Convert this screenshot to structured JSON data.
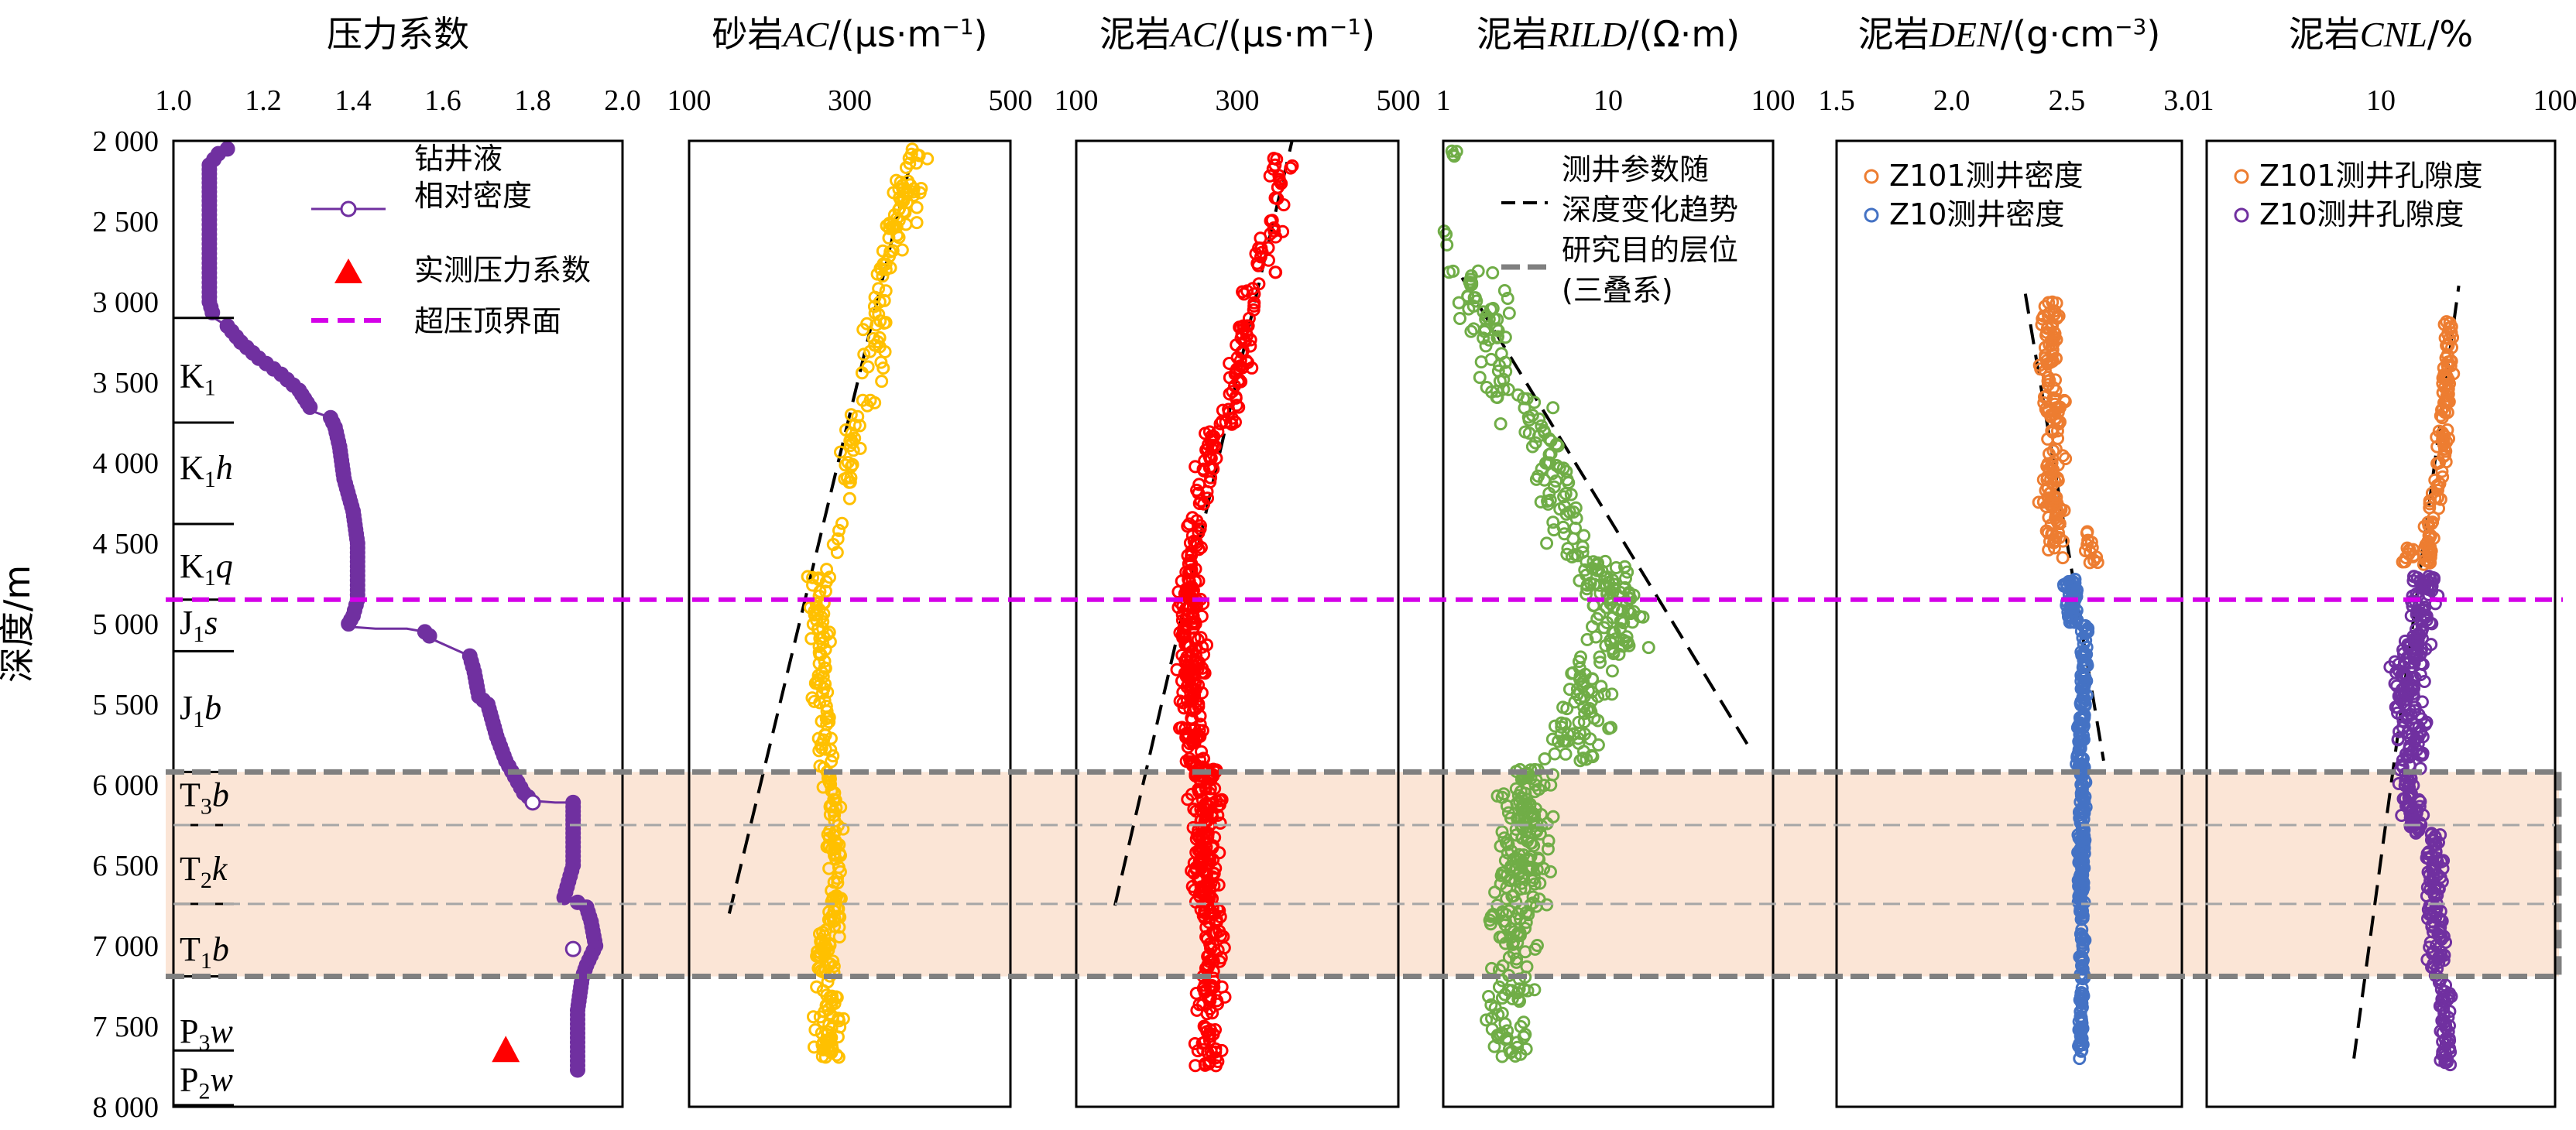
{
  "depth_axis": {
    "label": "深度/m",
    "ticks": [
      "2 000",
      "2 500",
      "3 000",
      "3 500",
      "4 000",
      "4 500",
      "5 000",
      "5 500",
      "6 000",
      "6 500",
      "7 000",
      "7 500",
      "8 000"
    ],
    "range": [
      2000,
      8000
    ]
  },
  "reference_lines": {
    "overpressure_top_depth": 4850,
    "target_interval": [
      5920,
      7190
    ],
    "sub_boundaries": [
      6250,
      6740
    ]
  },
  "chart_data": [
    {
      "id": "pressure",
      "type": "line",
      "title": "压力系数",
      "xscale": "linear",
      "xlim": [
        1.0,
        2.0
      ],
      "x_ticks": [
        "1.0",
        "1.2",
        "1.4",
        "1.6",
        "1.8",
        "2.0"
      ],
      "x_tick_values": [
        1.0,
        1.2,
        1.4,
        1.6,
        1.8,
        2.0
      ],
      "ylim": [
        2000,
        8000
      ],
      "series": [
        {
          "name": "钻井液相对密度",
          "color": "#7030a0",
          "points": [
            [
              1.12,
              2050
            ],
            [
              1.1,
              2080
            ],
            [
              1.08,
              2150
            ],
            [
              1.08,
              2400
            ],
            [
              1.08,
              2700
            ],
            [
              1.08,
              3000
            ],
            [
              1.09,
              3100
            ],
            [
              1.12,
              3150
            ],
            [
              1.15,
              3250
            ],
            [
              1.19,
              3350
            ],
            [
              1.24,
              3450
            ],
            [
              1.28,
              3550
            ],
            [
              1.31,
              3680
            ],
            [
              1.35,
              3720
            ],
            [
              1.36,
              3780
            ],
            [
              1.37,
              3900
            ],
            [
              1.38,
              4100
            ],
            [
              1.4,
              4300
            ],
            [
              1.41,
              4500
            ],
            [
              1.41,
              4700
            ],
            [
              1.41,
              4850
            ],
            [
              1.4,
              4950
            ],
            [
              1.39,
              5000
            ],
            [
              1.4,
              5020
            ],
            [
              1.45,
              5030
            ],
            [
              1.52,
              5030
            ],
            [
              1.56,
              5050
            ],
            [
              1.58,
              5100
            ],
            [
              1.62,
              5150
            ],
            [
              1.66,
              5200
            ],
            [
              1.67,
              5300
            ],
            [
              1.68,
              5450
            ],
            [
              1.7,
              5500
            ],
            [
              1.72,
              5700
            ],
            [
              1.74,
              5850
            ],
            [
              1.76,
              5950
            ],
            [
              1.78,
              6050
            ],
            [
              1.8,
              6100
            ],
            [
              1.85,
              6110
            ],
            [
              1.89,
              6110
            ],
            [
              1.89,
              6300
            ],
            [
              1.89,
              6500
            ],
            [
              1.88,
              6600
            ],
            [
              1.87,
              6700
            ],
            [
              1.9,
              6730
            ],
            [
              1.92,
              6760
            ],
            [
              1.93,
              6850
            ],
            [
              1.94,
              7000
            ],
            [
              1.92,
              7120
            ],
            [
              1.91,
              7200
            ],
            [
              1.9,
              7400
            ],
            [
              1.9,
              7600
            ],
            [
              1.9,
              7800
            ]
          ],
          "open_markers": [
            [
              1.8,
              6110
            ],
            [
              1.89,
              7020
            ]
          ]
        },
        {
          "name": "实测压力系数",
          "color": "#ff0000",
          "marker": "triangle",
          "points": [
            [
              1.74,
              7650
            ]
          ]
        }
      ],
      "hline_label": "超压顶界面",
      "strata": [
        {
          "depth": 3100,
          "base": "",
          "sub": "",
          "italic": ""
        },
        {
          "depth": 3460,
          "base": "K",
          "sub": "1",
          "italic": ""
        },
        {
          "depth": 3750,
          "base": "",
          "sub": "",
          "italic": ""
        },
        {
          "depth": 4030,
          "base": "K",
          "sub": "1",
          "italic": "h"
        },
        {
          "depth": 4380,
          "base": "",
          "sub": "",
          "italic": ""
        },
        {
          "depth": 4640,
          "base": "K",
          "sub": "1",
          "italic": "q"
        },
        {
          "depth": 4850,
          "base": "",
          "sub": "",
          "italic": ""
        },
        {
          "depth": 4990,
          "base": "J",
          "sub": "1",
          "italic": "s"
        },
        {
          "depth": 5170,
          "base": "",
          "sub": "",
          "italic": ""
        },
        {
          "depth": 5520,
          "base": "J",
          "sub": "1",
          "italic": "b"
        },
        {
          "depth": 5920,
          "base": "",
          "sub": "",
          "italic": ""
        },
        {
          "depth": 6060,
          "base": "T",
          "sub": "3",
          "italic": "b"
        },
        {
          "depth": 6250,
          "base": "",
          "sub": "",
          "italic": ""
        },
        {
          "depth": 6520,
          "base": "T",
          "sub": "2",
          "italic": "k"
        },
        {
          "depth": 6740,
          "base": "",
          "sub": "",
          "italic": ""
        },
        {
          "depth": 7020,
          "base": "T",
          "sub": "1",
          "italic": "b"
        },
        {
          "depth": 7190,
          "base": "",
          "sub": "",
          "italic": ""
        },
        {
          "depth": 7530,
          "base": "P",
          "sub": "3",
          "italic": "w"
        },
        {
          "depth": 7650,
          "base": "",
          "sub": "",
          "italic": ""
        },
        {
          "depth": 7830,
          "base": "P",
          "sub": "2",
          "italic": "w"
        },
        {
          "depth": 7990,
          "base": "",
          "sub": "",
          "italic": ""
        }
      ]
    },
    {
      "id": "sand-ac",
      "type": "scatter",
      "title_parts": [
        [
          "砂岩",
          ""
        ],
        [
          "AC",
          "i"
        ],
        [
          "/(μs·m",
          ""
        ],
        [
          "−1",
          "sup"
        ],
        [
          ")",
          ""
        ]
      ],
      "xscale": "linear",
      "xlim": [
        100,
        500
      ],
      "x_ticks": [
        "100",
        "300",
        "500"
      ],
      "x_tick_values": [
        100,
        300,
        500
      ],
      "ylim": [
        2000,
        8000
      ],
      "color": "#ffc000",
      "points_gen": {
        "seed": 11,
        "segments": [
          {
            "d0": 2050,
            "d1": 2700,
            "v0": 385,
            "v1": 350,
            "spread": 28,
            "n": 55
          },
          {
            "d0": 2700,
            "d1": 3700,
            "v0": 345,
            "v1": 325,
            "spread": 20,
            "n": 40
          },
          {
            "d0": 3700,
            "d1": 4700,
            "v0": 310,
            "v1": 275,
            "spread": 15,
            "n": 30
          },
          {
            "d0": 4700,
            "d1": 5900,
            "v0": 262,
            "v1": 270,
            "spread": 18,
            "n": 80
          },
          {
            "d0": 5900,
            "d1": 6900,
            "v0": 278,
            "v1": 282,
            "spread": 16,
            "n": 70
          },
          {
            "d0": 6900,
            "d1": 7700,
            "v0": 268,
            "v1": 275,
            "spread": 22,
            "n": 90
          }
        ]
      },
      "trend": [
        [
          150,
          6800
        ],
        [
          375,
          2150
        ]
      ]
    },
    {
      "id": "mud-ac",
      "type": "scatter",
      "title_parts": [
        [
          "泥岩",
          ""
        ],
        [
          "AC",
          "i"
        ],
        [
          "/(μs·m",
          ""
        ],
        [
          "−1",
          "sup"
        ],
        [
          ")",
          ""
        ]
      ],
      "xscale": "linear",
      "xlim": [
        100,
        500
      ],
      "x_ticks": [
        "100",
        "300",
        "500"
      ],
      "x_tick_values": [
        100,
        300,
        500
      ],
      "ylim": [
        2000,
        8000
      ],
      "color": "#ff0000",
      "points_gen": {
        "seed": 23,
        "segments": [
          {
            "d0": 2100,
            "d1": 2900,
            "v0": 355,
            "v1": 330,
            "spread": 25,
            "n": 35
          },
          {
            "d0": 2900,
            "d1": 3800,
            "v0": 320,
            "v1": 290,
            "spread": 20,
            "n": 60
          },
          {
            "d0": 3800,
            "d1": 4800,
            "v0": 268,
            "v1": 240,
            "spread": 16,
            "n": 70
          },
          {
            "d0": 4800,
            "d1": 5900,
            "v0": 240,
            "v1": 245,
            "spread": 22,
            "n": 160
          },
          {
            "d0": 5900,
            "d1": 6800,
            "v0": 262,
            "v1": 262,
            "spread": 25,
            "n": 160
          },
          {
            "d0": 6800,
            "d1": 7750,
            "v0": 270,
            "v1": 265,
            "spread": 22,
            "n": 90
          }
        ]
      },
      "trend": [
        [
          148,
          6750
        ],
        [
          368,
          2000
        ]
      ]
    },
    {
      "id": "mud-rild",
      "type": "scatter",
      "title_parts": [
        [
          "泥岩",
          ""
        ],
        [
          "RILD",
          "i"
        ],
        [
          "/(Ω·m)",
          ""
        ]
      ],
      "xscale": "log",
      "xlim": [
        1,
        100
      ],
      "x_ticks": [
        "1",
        "10",
        "100"
      ],
      "x_tick_values": [
        1,
        10,
        100
      ],
      "ylim": [
        2000,
        8000
      ],
      "color": "#70ad47",
      "points_gen": {
        "seed": 37,
        "log": true,
        "segments": [
          {
            "d0": 2050,
            "d1": 2120,
            "v0": 1.1,
            "v1": 1.15,
            "spread": 0.05,
            "n": 4
          },
          {
            "d0": 2550,
            "d1": 2650,
            "v0": 1.02,
            "v1": 1.05,
            "spread": 0.03,
            "n": 3
          },
          {
            "d0": 2800,
            "d1": 3600,
            "v0": 1.5,
            "v1": 2.3,
            "spread": 0.22,
            "n": 60
          },
          {
            "d0": 3600,
            "d1": 4600,
            "v0": 3.0,
            "v1": 6.0,
            "spread": 0.22,
            "n": 70
          },
          {
            "d0": 4600,
            "d1": 5200,
            "v0": 9.0,
            "v1": 12.0,
            "spread": 0.25,
            "n": 90
          },
          {
            "d0": 5200,
            "d1": 5850,
            "v0": 8.0,
            "v1": 6.0,
            "spread": 0.25,
            "n": 70
          },
          {
            "d0": 5900,
            "d1": 6800,
            "v0": 3.2,
            "v1": 3.0,
            "spread": 0.22,
            "n": 150
          },
          {
            "d0": 6800,
            "d1": 7300,
            "v0": 2.6,
            "v1": 2.8,
            "spread": 0.22,
            "n": 50
          },
          {
            "d0": 7300,
            "d1": 7750,
            "v0": 2.2,
            "v1": 2.6,
            "spread": 0.2,
            "n": 35
          }
        ]
      },
      "trend": [
        [
          1.3,
          2850
        ],
        [
          70,
          5750
        ]
      ],
      "legend": [
        "测井参数随",
        "深度变化趋势",
        "研究目的层位",
        "(三叠系)"
      ]
    },
    {
      "id": "mud-den",
      "type": "scatter",
      "title_parts": [
        [
          "泥岩",
          ""
        ],
        [
          "DEN",
          "i"
        ],
        [
          "/(g·cm",
          ""
        ],
        [
          "−3",
          "sup"
        ],
        [
          ")",
          ""
        ]
      ],
      "xscale": "linear",
      "xlim": [
        1.5,
        3.0
      ],
      "x_ticks": [
        "1.5",
        "2.0",
        "2.5",
        "3.0"
      ],
      "x_tick_values": [
        1.5,
        2.0,
        2.5,
        3.0
      ],
      "ylim": [
        2000,
        8000
      ],
      "series": [
        {
          "name": "Z101测井密度",
          "color": "#ed7d31",
          "points_gen": {
            "seed": 51,
            "segments": [
              {
                "d0": 3000,
                "d1": 3600,
                "v0": 2.44,
                "v1": 2.42,
                "spread": 0.06,
                "n": 55
              },
              {
                "d0": 3600,
                "d1": 4000,
                "v0": 2.44,
                "v1": 2.46,
                "spread": 0.06,
                "n": 35
              },
              {
                "d0": 4000,
                "d1": 4600,
                "v0": 2.42,
                "v1": 2.46,
                "spread": 0.07,
                "n": 60
              },
              {
                "d0": 4400,
                "d1": 4650,
                "v0": 2.58,
                "v1": 2.62,
                "spread": 0.03,
                "n": 12
              }
            ]
          }
        },
        {
          "name": "Z10测井密度",
          "color": "#4472c4",
          "points_gen": {
            "seed": 59,
            "segments": [
              {
                "d0": 4700,
                "d1": 5000,
                "v0": 2.52,
                "v1": 2.53,
                "spread": 0.045,
                "n": 50
              },
              {
                "d0": 5000,
                "d1": 5900,
                "v0": 2.58,
                "v1": 2.56,
                "spread": 0.025,
                "n": 90
              },
              {
                "d0": 5900,
                "d1": 6800,
                "v0": 2.57,
                "v1": 2.56,
                "spread": 0.02,
                "n": 120
              },
              {
                "d0": 6800,
                "d1": 7700,
                "v0": 2.57,
                "v1": 2.56,
                "spread": 0.015,
                "n": 80
              }
            ]
          }
        }
      ],
      "trend": [
        [
          2.32,
          2950
        ],
        [
          2.66,
          5850
        ]
      ]
    },
    {
      "id": "mud-cnl",
      "type": "scatter",
      "title_parts": [
        [
          "泥岩",
          ""
        ],
        [
          "CNL",
          "i"
        ],
        [
          "/%",
          ""
        ]
      ],
      "xscale": "log",
      "xlim": [
        1,
        100
      ],
      "x_ticks": [
        "1",
        "10",
        "100"
      ],
      "x_tick_values": [
        1,
        10,
        100
      ],
      "ylim": [
        2000,
        8000
      ],
      "series": [
        {
          "name": "Z101测井孔隙度",
          "color": "#ed7d31",
          "points_gen": {
            "seed": 71,
            "log": true,
            "segments": [
              {
                "d0": 3050,
                "d1": 4100,
                "v0": 25,
                "v1": 22,
                "spread": 0.05,
                "n": 70
              },
              {
                "d0": 4100,
                "d1": 4650,
                "v0": 21,
                "v1": 18,
                "spread": 0.05,
                "n": 40
              },
              {
                "d0": 4500,
                "d1": 4620,
                "v0": 15,
                "v1": 14,
                "spread": 0.04,
                "n": 10
              }
            ]
          }
        },
        {
          "name": "Z10测井孔隙度",
          "color": "#7030a0",
          "points_gen": {
            "seed": 79,
            "log": true,
            "segments": [
              {
                "d0": 4700,
                "d1": 5200,
                "v0": 18,
                "v1": 16,
                "spread": 0.12,
                "n": 80
              },
              {
                "d0": 5200,
                "d1": 5900,
                "v0": 14,
                "v1": 15,
                "spread": 0.14,
                "n": 100
              },
              {
                "d0": 5900,
                "d1": 6300,
                "v0": 14,
                "v1": 16,
                "spread": 0.08,
                "n": 50
              },
              {
                "d0": 6300,
                "d1": 7200,
                "v0": 20,
                "v1": 21,
                "spread": 0.08,
                "n": 100
              },
              {
                "d0": 7200,
                "d1": 7750,
                "v0": 23,
                "v1": 24,
                "spread": 0.05,
                "n": 50
              }
            ]
          }
        }
      ],
      "trend": [
        [
          7.0,
          7700
        ],
        [
          28,
          2900
        ]
      ]
    }
  ]
}
